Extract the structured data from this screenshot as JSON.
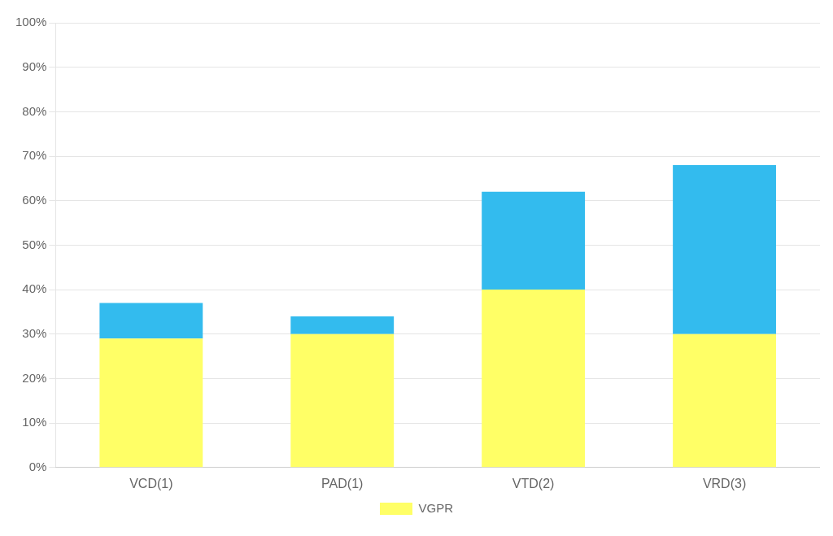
{
  "chart_data": {
    "type": "bar",
    "categories": [
      "VCD(1)",
      "PAD(1)",
      "VTD(2)",
      "VRD(3)"
    ],
    "series": [
      {
        "name": "VGPR",
        "color": "#FFFF66",
        "values": [
          29,
          30,
          40,
          30
        ]
      },
      {
        "color": "#33BBEE",
        "values": [
          8,
          4,
          22,
          38
        ]
      }
    ],
    "stacked": true,
    "ylim": [
      0,
      100
    ],
    "yticks": [
      {
        "value": 0,
        "label": "0%"
      },
      {
        "value": 10,
        "label": "10%"
      },
      {
        "value": 20,
        "label": "20%"
      },
      {
        "value": 30,
        "label": "30%"
      },
      {
        "value": 40,
        "label": "40%"
      },
      {
        "value": 50,
        "label": "50%"
      },
      {
        "value": 60,
        "label": "60%"
      },
      {
        "value": 70,
        "label": "70%"
      },
      {
        "value": 80,
        "label": "80%"
      },
      {
        "value": 90,
        "label": "90%"
      },
      {
        "value": 100,
        "label": "100%"
      }
    ],
    "grid": true,
    "legend": "bottom"
  }
}
